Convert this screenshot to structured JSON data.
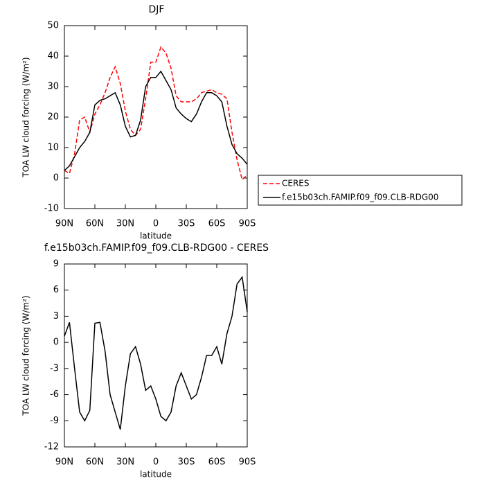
{
  "chart_data": [
    {
      "type": "line",
      "title": "DJF",
      "x_label": "latitude",
      "y_label": "TOA LW cloud forcing (W/m²)",
      "x": [
        90,
        85,
        80,
        75,
        70,
        65,
        60,
        55,
        50,
        45,
        40,
        35,
        30,
        25,
        20,
        15,
        10,
        5,
        0,
        -5,
        -10,
        -15,
        -20,
        -25,
        -30,
        -35,
        -40,
        -45,
        -50,
        -55,
        -60,
        -65,
        -70,
        -75,
        -80,
        -85,
        -90
      ],
      "series": [
        {
          "name": "CERES",
          "color": "#ff0000",
          "line_style": "dashed",
          "values": [
            2.5,
            1.5,
            8,
            19,
            20,
            15,
            21,
            24,
            28,
            33,
            36.5,
            31,
            22,
            16,
            14,
            16,
            26,
            38,
            38,
            43,
            41,
            36,
            27,
            25,
            25,
            25,
            26,
            28,
            28.5,
            29,
            28,
            27.5,
            26,
            15,
            6,
            -0.5,
            1
          ]
        },
        {
          "name": "f.e15b03ch.FAMIP.f09_f09.CLB-RDG00",
          "color": "#000000",
          "line_style": "solid",
          "values": [
            2.5,
            4,
            7,
            10,
            12,
            15,
            24,
            25.5,
            26,
            27,
            28,
            24,
            17,
            13.5,
            14,
            19,
            30,
            33,
            33,
            35,
            32,
            29,
            23,
            21,
            19.5,
            18.5,
            21,
            25,
            28,
            28,
            27,
            25,
            17,
            11,
            8,
            6.5,
            4.5
          ]
        }
      ],
      "legend": "right",
      "xlim": [
        90,
        -90
      ],
      "xticks": [
        {
          "value": 90,
          "label": "90N"
        },
        {
          "value": 60,
          "label": "60N"
        },
        {
          "value": 30,
          "label": "30N"
        },
        0,
        {
          "value": -30,
          "label": "30S"
        },
        {
          "value": -60,
          "label": "60S"
        },
        {
          "value": -90,
          "label": "90S"
        }
      ],
      "ylim": [
        -10,
        50
      ],
      "yticks": [
        -10,
        0,
        10,
        20,
        30,
        40,
        50
      ]
    },
    {
      "type": "line",
      "title": "f.e15b03ch.FAMIP.f09_f09.CLB-RDG00 - CERES",
      "x_label": "latitude",
      "y_label": "TOA LW cloud forcing (W/m²)",
      "x": [
        90,
        85,
        80,
        75,
        70,
        65,
        60,
        55,
        50,
        45,
        40,
        35,
        30,
        25,
        20,
        15,
        10,
        5,
        0,
        -5,
        -10,
        -15,
        -20,
        -25,
        -30,
        -35,
        -40,
        -45,
        -50,
        -55,
        -60,
        -65,
        -70,
        -75,
        -80,
        -85,
        -90
      ],
      "color": "#000000",
      "values": [
        0.7,
        2.3,
        -3,
        -8,
        -9,
        -7.8,
        2.2,
        2.3,
        -1,
        -6,
        -8,
        -10,
        -5,
        -1.3,
        -0.5,
        -2.5,
        -5.5,
        -5,
        -6.5,
        -8.5,
        -9,
        -8,
        -5,
        -3.5,
        -5,
        -6.5,
        -6,
        -4,
        -1.5,
        -1.5,
        -0.5,
        -2.5,
        1,
        3,
        6.7,
        7.5,
        3.5
      ],
      "xlim": [
        90,
        -90
      ],
      "xticks": [
        {
          "value": 90,
          "label": "90N"
        },
        {
          "value": 60,
          "label": "60N"
        },
        {
          "value": 30,
          "label": "30N"
        },
        0,
        {
          "value": -30,
          "label": "30S"
        },
        {
          "value": -60,
          "label": "60S"
        },
        {
          "value": -90,
          "label": "90S"
        }
      ],
      "ylim": [
        -12,
        9
      ],
      "yticks": [
        -12,
        -9,
        -6,
        -3,
        0,
        3,
        6,
        9
      ]
    }
  ]
}
